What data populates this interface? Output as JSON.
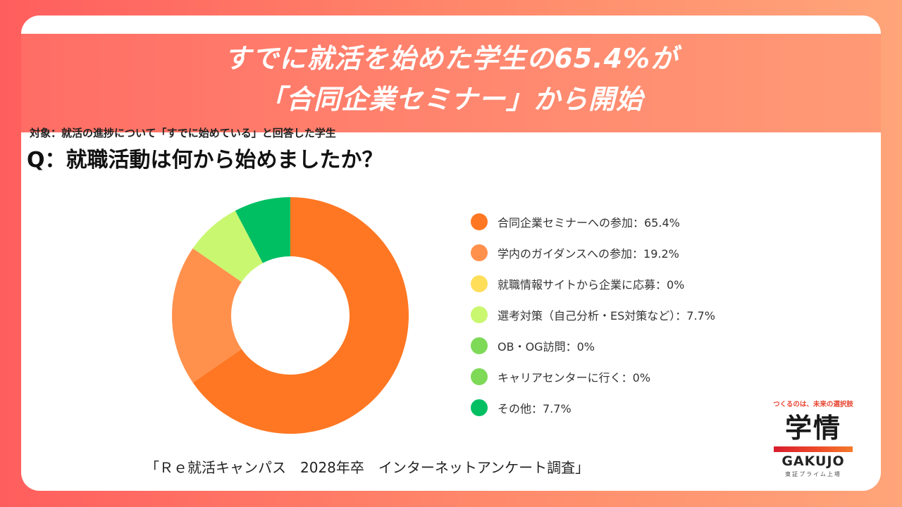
{
  "banner": {
    "line1": "すでに就活を始めた学生の65.4%が",
    "line2": "「合同企業セミナー」から開始"
  },
  "subject": "対象：就活の進捗について「すでに始めている」と回答した学生",
  "question": "Q：就職活動は何から始めましたか？",
  "source": "「Ｒｅ就活キャンパス　2028年卒　インターネットアンケート調査」",
  "logo": {
    "tagline": "つくるのは、未来の選択肢",
    "mark": "学情",
    "name": "GAKUJO",
    "listing": "東証プライム上場"
  },
  "chart_data": {
    "type": "pie",
    "title": "",
    "categories": [
      "合同企業セミナーへの参加",
      "学内のガイダンスへの参加",
      "就職情報サイトから企業に応募",
      "選考対策（自己分析・ES対策など）",
      "OB・OG訪問",
      "キャリアセンターに行く",
      "その他"
    ],
    "values": [
      65.4,
      19.2,
      0,
      7.7,
      0,
      0,
      7.7
    ],
    "labels": [
      "合同企業セミナーへの参加：65.4%",
      "学内のガイダンスへの参加：19.2%",
      "就職情報サイトから企業に応募：0%",
      "選考対策（自己分析・ES対策など）：7.7%",
      "OB・OG訪問：0%",
      "キャリアセンターに行く：0%",
      "その他：7.7%"
    ],
    "colors": [
      "#ff7722",
      "#ff914d",
      "#ffde59",
      "#c9f76f",
      "#7ed957",
      "#7ed957",
      "#00bf63"
    ],
    "unit": "%",
    "donut": true,
    "legend_position": "right"
  }
}
